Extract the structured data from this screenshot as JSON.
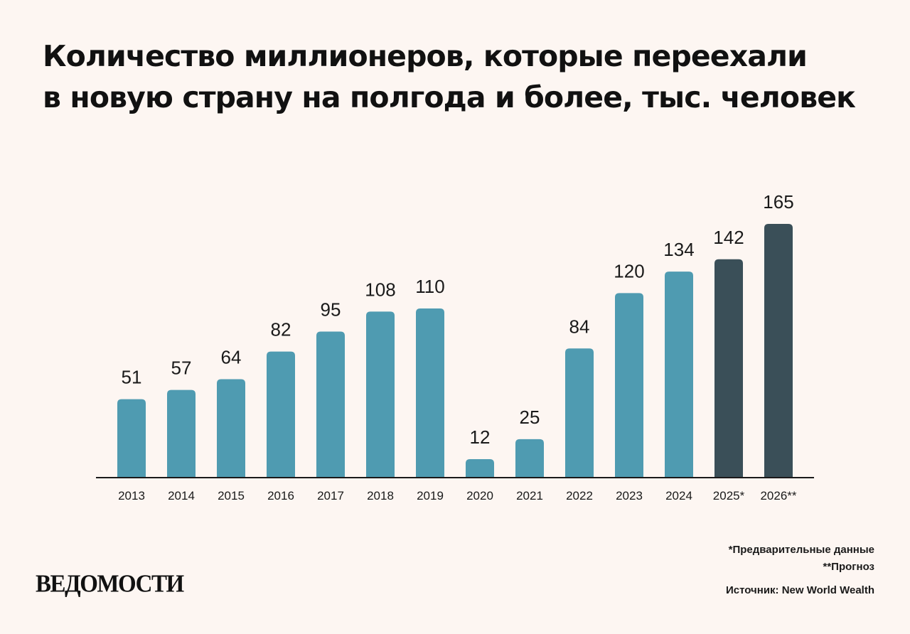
{
  "header": {
    "title_line1": "Количество миллионеров, которые переехали",
    "title_line2": "в новую страну на полгода и более, тыс. человек"
  },
  "chart_data": {
    "type": "bar",
    "title": "Количество миллионеров, которые переехали в новую страну на полгода и более, тыс. человек",
    "categories": [
      "2013",
      "2014",
      "2015",
      "2016",
      "2017",
      "2018",
      "2019",
      "2020",
      "2021",
      "2022",
      "2023",
      "2024",
      "2025*",
      "2026**"
    ],
    "values": [
      51,
      57,
      64,
      82,
      95,
      108,
      110,
      12,
      25,
      84,
      120,
      134,
      142,
      165
    ],
    "kinds": [
      "actual",
      "actual",
      "actual",
      "actual",
      "actual",
      "actual",
      "actual",
      "actual",
      "actual",
      "actual",
      "actual",
      "actual",
      "forecast",
      "forecast"
    ],
    "colors": {
      "actual": "#4f9bb1",
      "forecast": "#3a4f58"
    },
    "xlabel": "",
    "ylabel": "",
    "ylim": [
      0,
      165
    ],
    "grid": false,
    "legend": "none"
  },
  "footnotes": {
    "preliminary": "*Предварительные данные",
    "forecast": "**Прогноз",
    "source": "Источник: New World Wealth"
  },
  "branding": {
    "logo": "ВЕДОМОСТИ"
  }
}
